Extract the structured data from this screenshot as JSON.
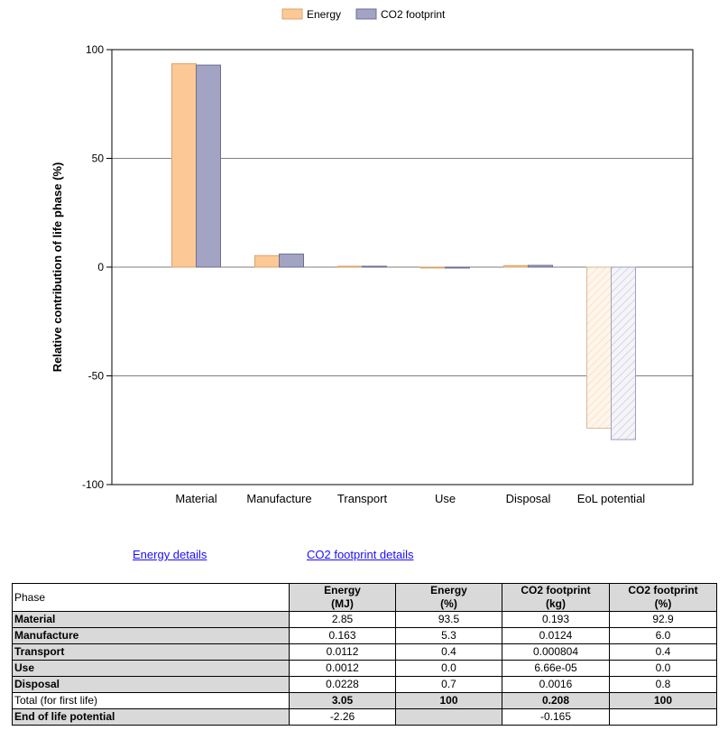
{
  "chart_data": {
    "type": "bar",
    "ylabel": "Relative contribution of life phase (%)",
    "xlabel": "",
    "ylim": [
      -100,
      100
    ],
    "yticks": [
      100,
      50,
      0,
      -50,
      -100
    ],
    "ytick_labels": [
      "100",
      "50",
      "0",
      "-50",
      "-100"
    ],
    "categories": [
      "Material",
      "Manufacture",
      "Transport",
      "Use",
      "Disposal",
      "EoL potential"
    ],
    "series": [
      {
        "name": "Energy",
        "color": "#fcc896",
        "values": [
          93.5,
          5.3,
          0.4,
          0.0,
          0.7,
          -74.1
        ]
      },
      {
        "name": "CO2 footprint",
        "color": "#a3a3c4",
        "values": [
          92.9,
          6.0,
          0.4,
          0.0,
          0.8,
          -79.3
        ]
      }
    ],
    "hatched_categories": [
      "EoL potential"
    ],
    "grid": true,
    "legend_position": "top-center"
  },
  "links": {
    "energy": "Energy details",
    "co2": "CO2 footprint details"
  },
  "table": {
    "headers": {
      "phase": "Phase",
      "energy_mj": "Energy\n(MJ)",
      "energy_pct": "Energy\n(%)",
      "co2_kg": "CO2 footprint\n(kg)",
      "co2_pct": "CO2 footprint\n(%)"
    },
    "rows": [
      {
        "phase": "Material",
        "energy_mj": "2.85",
        "energy_pct": "93.5",
        "co2_kg": "0.193",
        "co2_pct": "92.9"
      },
      {
        "phase": "Manufacture",
        "energy_mj": "0.163",
        "energy_pct": "5.3",
        "co2_kg": "0.0124",
        "co2_pct": "6.0"
      },
      {
        "phase": "Transport",
        "energy_mj": "0.0112",
        "energy_pct": "0.4",
        "co2_kg": "0.000804",
        "co2_pct": "0.4"
      },
      {
        "phase": "Use",
        "energy_mj": "0.0012",
        "energy_pct": "0.0",
        "co2_kg": "6.66e-05",
        "co2_pct": "0.0"
      },
      {
        "phase": "Disposal",
        "energy_mj": "0.0228",
        "energy_pct": "0.7",
        "co2_kg": "0.0016",
        "co2_pct": "0.8"
      }
    ],
    "total": {
      "phase": "Total (for first life)",
      "energy_mj": "3.05",
      "energy_pct": "100",
      "co2_kg": "0.208",
      "co2_pct": "100"
    },
    "eol": {
      "phase": "End of life potential",
      "energy_mj": "-2.26",
      "co2_kg": "-0.165"
    }
  }
}
